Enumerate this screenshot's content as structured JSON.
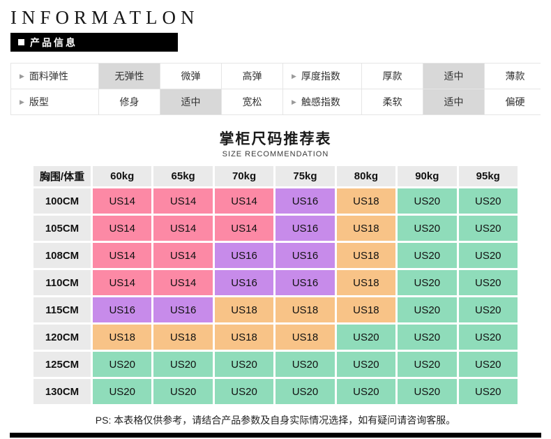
{
  "header": {
    "title": "INFORMATLON",
    "badge": "产品信息"
  },
  "attribute_table": {
    "rows": [
      [
        {
          "label": "面料弹性",
          "options": [
            {
              "text": "无弹性",
              "selected": true
            },
            {
              "text": "微弹",
              "selected": false
            },
            {
              "text": "高弹",
              "selected": false
            }
          ]
        },
        {
          "label": "厚度指数",
          "options": [
            {
              "text": "厚款",
              "selected": false
            },
            {
              "text": "适中",
              "selected": true
            },
            {
              "text": "薄款",
              "selected": false
            }
          ]
        }
      ],
      [
        {
          "label": "版型",
          "options": [
            {
              "text": "修身",
              "selected": false
            },
            {
              "text": "适中",
              "selected": true
            },
            {
              "text": "宽松",
              "selected": false
            }
          ]
        },
        {
          "label": "触感指数",
          "options": [
            {
              "text": "柔软",
              "selected": false
            },
            {
              "text": "适中",
              "selected": true
            },
            {
              "text": "偏硬",
              "selected": false
            }
          ]
        }
      ]
    ]
  },
  "size_table": {
    "title": "掌柜尺码推荐表",
    "subtitle": "SIZE RECOMMENDATION",
    "corner_header": "胸围/体重",
    "weight_headers": [
      "60kg",
      "65kg",
      "70kg",
      "75kg",
      "80kg",
      "90kg",
      "95kg"
    ],
    "rows": [
      {
        "chest": "100CM",
        "sizes": [
          "US14",
          "US14",
          "US14",
          "US16",
          "US18",
          "US20",
          "US20"
        ]
      },
      {
        "chest": "105CM",
        "sizes": [
          "US14",
          "US14",
          "US14",
          "US16",
          "US18",
          "US20",
          "US20"
        ]
      },
      {
        "chest": "108CM",
        "sizes": [
          "US14",
          "US14",
          "US16",
          "US16",
          "US18",
          "US20",
          "US20"
        ]
      },
      {
        "chest": "110CM",
        "sizes": [
          "US14",
          "US14",
          "US16",
          "US16",
          "US18",
          "US20",
          "US20"
        ]
      },
      {
        "chest": "115CM",
        "sizes": [
          "US16",
          "US16",
          "US18",
          "US18",
          "US18",
          "US20",
          "US20"
        ]
      },
      {
        "chest": "120CM",
        "sizes": [
          "US18",
          "US18",
          "US18",
          "US18",
          "US20",
          "US20",
          "US20"
        ]
      },
      {
        "chest": "125CM",
        "sizes": [
          "US20",
          "US20",
          "US20",
          "US20",
          "US20",
          "US20",
          "US20"
        ]
      },
      {
        "chest": "130CM",
        "sizes": [
          "US20",
          "US20",
          "US20",
          "US20",
          "US20",
          "US20",
          "US20"
        ]
      }
    ],
    "size_colors": {
      "US14": "#fc89a5",
      "US16": "#c78bea",
      "US18": "#f8c387",
      "US20": "#8fdcba"
    },
    "header_bg": "#eaeaea"
  },
  "footnote": "PS: 本表格仅供参考，请结合产品参数及自身实际情况选择，如有疑问请咨询客服。",
  "colors": {
    "selected_bg": "#d8d8d8",
    "badge_bg": "#000000"
  }
}
